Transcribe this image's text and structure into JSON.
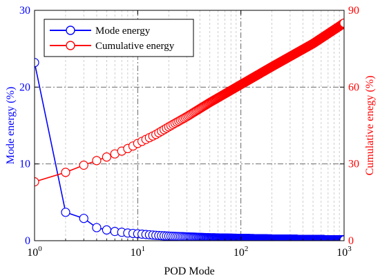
{
  "chart_data": {
    "type": "line",
    "title": "",
    "xlabel": "POD Mode",
    "ylabel_left": "Mode energy (%)",
    "ylabel_right": "Cumulative enegy (%)",
    "x_scale": "log",
    "xlim": [
      1,
      1000
    ],
    "ylim_left": [
      0,
      30
    ],
    "ylim_right": [
      0,
      90
    ],
    "x_ticks": [
      {
        "value": 1,
        "base": "10",
        "exp": "0"
      },
      {
        "value": 10,
        "base": "10",
        "exp": "1"
      },
      {
        "value": 100,
        "base": "10",
        "exp": "2"
      },
      {
        "value": 1000,
        "base": "10",
        "exp": "3"
      }
    ],
    "y_ticks_left": [
      "0",
      "10",
      "20",
      "30"
    ],
    "y_ticks_right": [
      "0",
      "30",
      "60",
      "90"
    ],
    "grid": true,
    "legend_position": "top-left",
    "series": [
      {
        "name": "Mode energy",
        "axis": "left",
        "color": "#0000ff",
        "marker": "open-circle",
        "points": [
          [
            1,
            23.2
          ],
          [
            2,
            3.7
          ],
          [
            3,
            2.9
          ],
          [
            4,
            1.7
          ],
          [
            5,
            1.4
          ],
          [
            6,
            1.2
          ],
          [
            7,
            1.1
          ],
          [
            8,
            1.0
          ],
          [
            9,
            0.95
          ],
          [
            10,
            0.9
          ],
          [
            15,
            0.7
          ],
          [
            20,
            0.6
          ],
          [
            30,
            0.5
          ],
          [
            50,
            0.38
          ],
          [
            100,
            0.3
          ],
          [
            200,
            0.22
          ],
          [
            500,
            0.15
          ],
          [
            1000,
            0.1
          ]
        ]
      },
      {
        "name": "Cumulative energy",
        "axis": "right",
        "color": "#ff0000",
        "marker": "open-circle",
        "points": [
          [
            1,
            23
          ],
          [
            2,
            26.7
          ],
          [
            3,
            29.5
          ],
          [
            4,
            31.3
          ],
          [
            5,
            32.7
          ],
          [
            6,
            33.9
          ],
          [
            7,
            35
          ],
          [
            8,
            36
          ],
          [
            9,
            37
          ],
          [
            10,
            38
          ],
          [
            15,
            41.5
          ],
          [
            20,
            44.5
          ],
          [
            30,
            48.5
          ],
          [
            50,
            54
          ],
          [
            100,
            61
          ],
          [
            200,
            68
          ],
          [
            500,
            77
          ],
          [
            1000,
            85
          ]
        ]
      }
    ]
  }
}
